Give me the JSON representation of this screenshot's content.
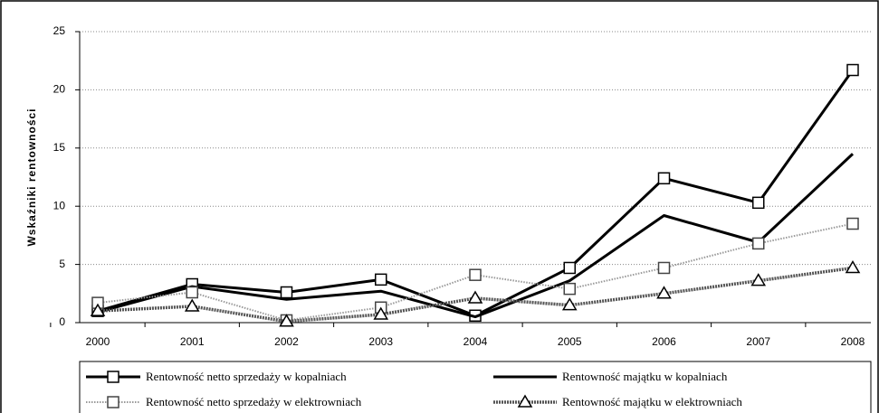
{
  "chart_data": {
    "type": "line",
    "y_label": "Wskaźniki rentowności",
    "categories": [
      "2000",
      "2001",
      "2002",
      "2003",
      "2004",
      "2005",
      "2006",
      "2007",
      "2008"
    ],
    "series": [
      {
        "name": "Rentowność  netto sprzedaży w kopalniach",
        "color": "#000000",
        "style": "solid",
        "marker": "square",
        "values": [
          1.0,
          3.3,
          2.6,
          3.7,
          0.6,
          4.7,
          12.4,
          10.3,
          21.7
        ]
      },
      {
        "name": "Rentowność majątku w kopalniach",
        "color": "#000000",
        "style": "solid",
        "marker": "none",
        "values": [
          0.9,
          3.1,
          2.0,
          2.7,
          0.5,
          3.6,
          9.2,
          6.9,
          14.5
        ]
      },
      {
        "name": "Rentowność  netto sprzedaży w elektrowniach",
        "color": "#999999",
        "style": "dotted",
        "marker": "square",
        "values": [
          1.7,
          2.6,
          0.2,
          1.3,
          4.1,
          2.9,
          4.7,
          6.8,
          8.5
        ]
      },
      {
        "name": "Rentowność majątku w elektrowniach",
        "color": "#555555",
        "style": "dashed",
        "marker": "triangle",
        "values": [
          1.0,
          1.4,
          0.1,
          0.7,
          2.1,
          1.5,
          2.5,
          3.6,
          4.7
        ]
      }
    ],
    "ylim": [
      0,
      25
    ],
    "yticks": [
      0,
      5,
      10,
      15,
      20,
      25
    ],
    "grid": true,
    "legend": "bottom"
  }
}
